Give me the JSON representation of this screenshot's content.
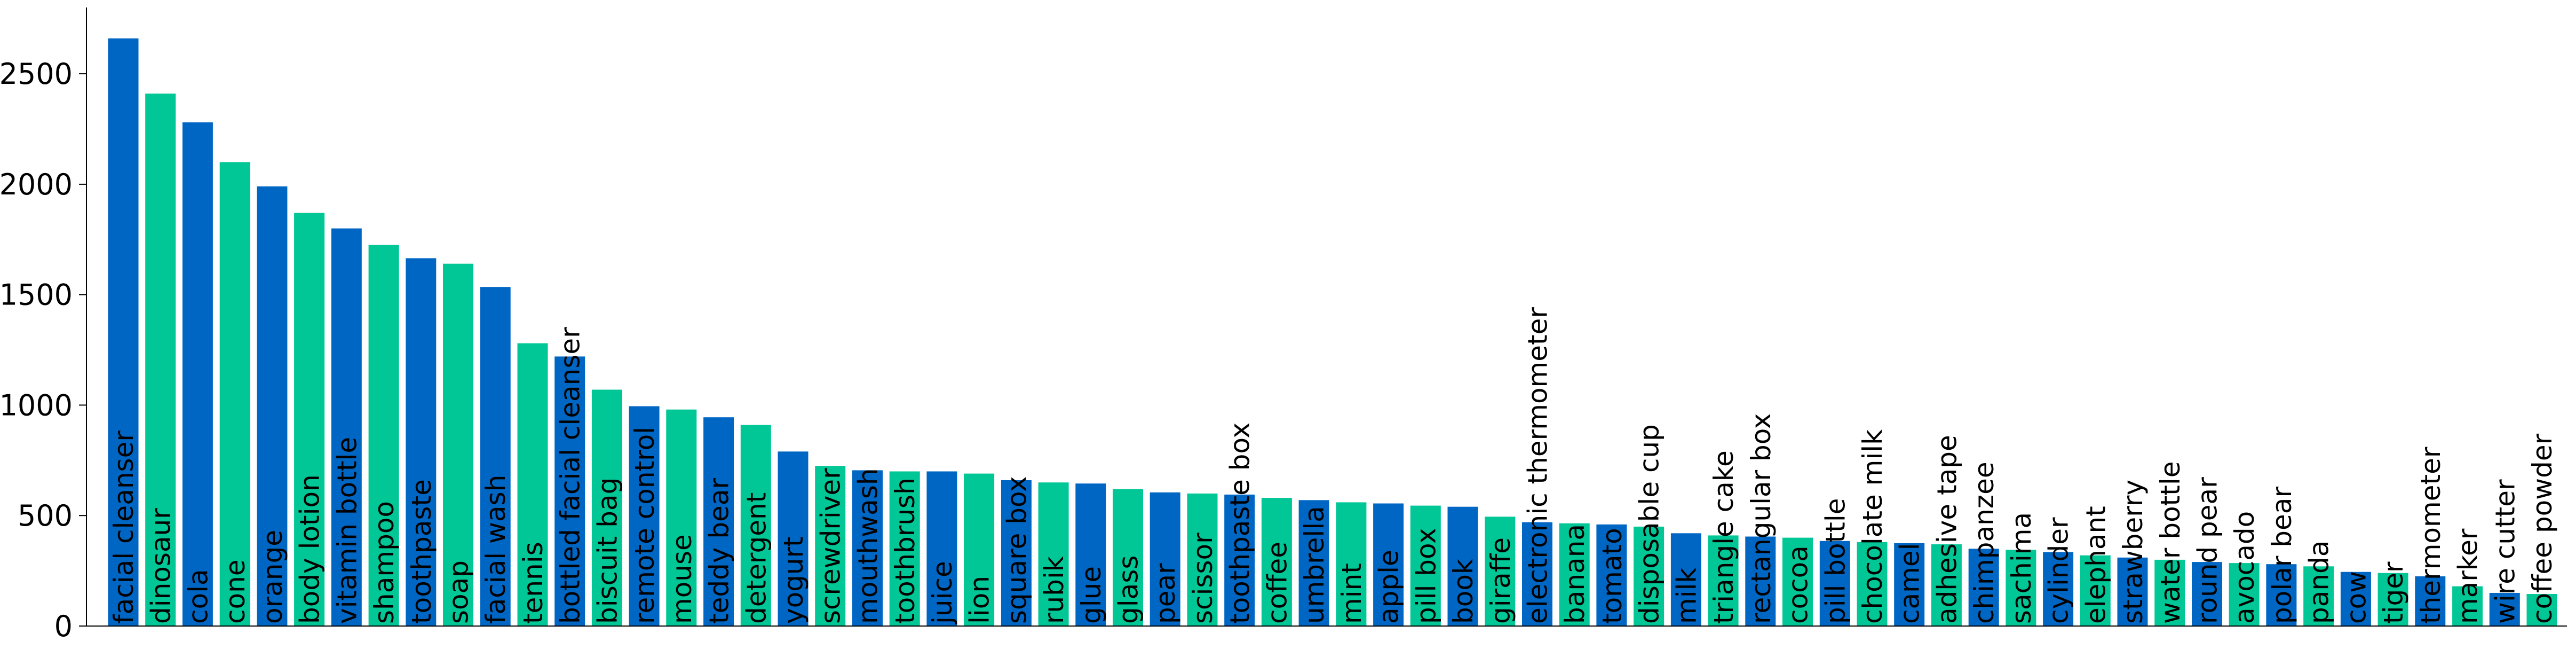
{
  "chart_data": {
    "type": "bar",
    "title": "",
    "xlabel": "",
    "ylabel": "",
    "ylim": [
      0,
      2800
    ],
    "yticks": [
      0,
      500,
      1000,
      1500,
      2000,
      2500
    ],
    "ytick_labels": [
      "0",
      "500",
      "1000",
      "1500",
      "2000",
      "2500"
    ],
    "grid": false,
    "legend": "none",
    "colors": [
      "#0066c4",
      "#00c795"
    ],
    "categories": [
      "facial cleanser",
      "dinosaur",
      "cola",
      "cone",
      "orange",
      "body lotion",
      "vitamin bottle",
      "shampoo",
      "toothpaste",
      "soap",
      "facial wash",
      "tennis",
      "bottled facial cleanser",
      "biscuit bag",
      "remote control",
      "mouse",
      "teddy bear",
      "detergent",
      "yogurt",
      "screwdriver",
      "mouthwash",
      "toothbrush",
      "juice",
      "lion",
      "square box",
      "rubik",
      "glue",
      "glass",
      "pear",
      "scissor",
      "toothpaste box",
      "coffee",
      "umbrella",
      "mint",
      "apple",
      "pill box",
      "book",
      "giraffe",
      "electronic thermometer",
      "banana",
      "tomato",
      "disposable cup",
      "milk",
      "triangle cake",
      "rectangular box",
      "cocoa",
      "pill bottle",
      "chocolate milk",
      "camel",
      "adhesive tape",
      "chimpanzee",
      "sachima",
      "cylinder",
      "elephant",
      "strawberry",
      "water bottle",
      "round pear",
      "avocado",
      "polar bear",
      "panda",
      "cow",
      "tiger",
      "thermometer",
      "marker",
      "wire cutter",
      "coffee powder"
    ],
    "values": [
      2660,
      2410,
      2280,
      2100,
      1990,
      1870,
      1800,
      1725,
      1665,
      1640,
      1535,
      1280,
      1220,
      1070,
      995,
      980,
      945,
      910,
      790,
      725,
      705,
      700,
      700,
      690,
      660,
      650,
      645,
      620,
      605,
      600,
      595,
      580,
      570,
      560,
      555,
      545,
      540,
      495,
      470,
      465,
      460,
      450,
      420,
      410,
      405,
      400,
      385,
      380,
      375,
      370,
      350,
      345,
      335,
      320,
      310,
      300,
      290,
      285,
      280,
      270,
      245,
      240,
      225,
      180,
      150,
      145
    ]
  }
}
